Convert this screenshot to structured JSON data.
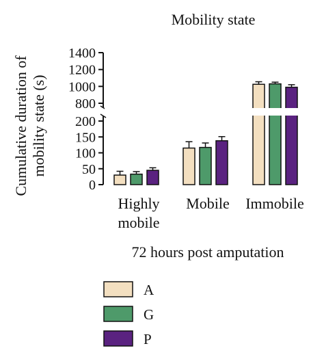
{
  "chart_data": {
    "type": "bar",
    "title": "Mobility state",
    "xlabel": "72 hours post amputation",
    "ylabel": [
      "Cumulative duration of",
      "mobility state (s)"
    ],
    "categories": [
      [
        "Highly",
        "mobile"
      ],
      [
        "Mobile"
      ],
      [
        "Immobile"
      ]
    ],
    "series": [
      {
        "name": "A",
        "values": [
          30,
          115,
          1025
        ],
        "errors": [
          12,
          20,
          30
        ],
        "color": "#f3dfc0"
      },
      {
        "name": "G",
        "values": [
          33,
          117,
          1030
        ],
        "errors": [
          8,
          14,
          20
        ],
        "color": "#4e9a6a"
      },
      {
        "name": "P",
        "values": [
          45,
          138,
          990
        ],
        "errors": [
          8,
          13,
          30
        ],
        "color": "#5a2280"
      }
    ],
    "y_axis_broken": true,
    "y_lower": {
      "range": [
        0,
        200
      ],
      "ticks": [
        "0",
        "50",
        "100",
        "150",
        "200"
      ]
    },
    "y_upper": {
      "range": [
        800,
        1400
      ],
      "ticks": [
        "800",
        "1000",
        "1200",
        "1400"
      ]
    },
    "grid": false,
    "legend_position": "bottom-left",
    "error_bars": true
  }
}
